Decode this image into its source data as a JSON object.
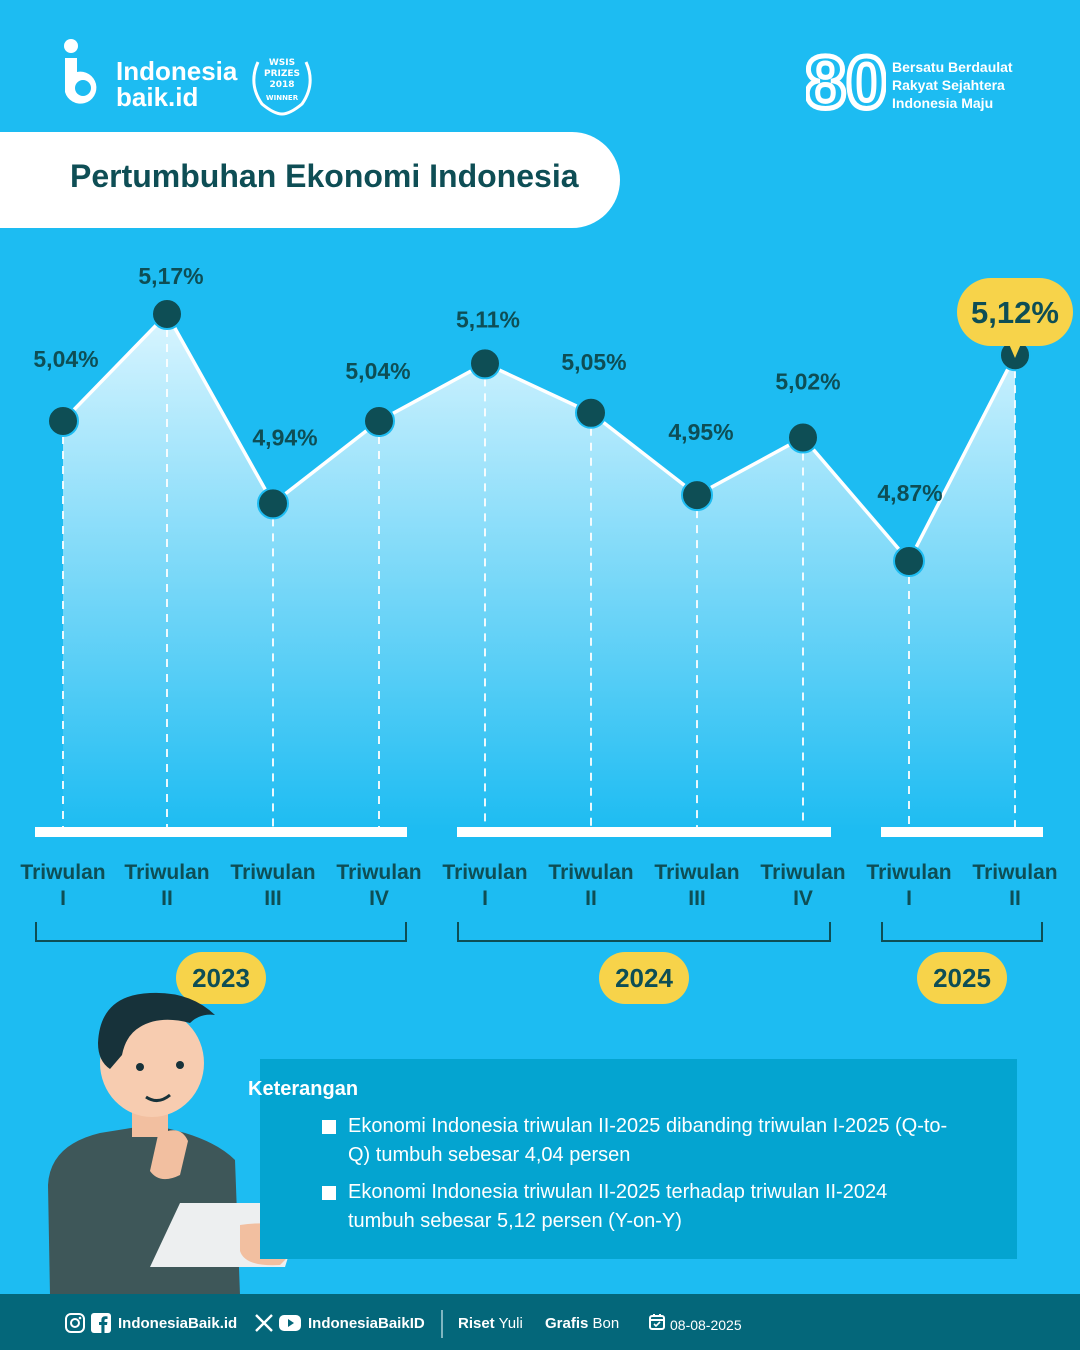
{
  "brand": {
    "logo_line1": "Indonesia",
    "logo_line2": "baik.id",
    "award_line1": "WSIS",
    "award_line2": "PRIZES",
    "award_line3": "2018",
    "award_line4": "WINNER",
    "anniversary_number": "80",
    "tagline_line1": "Bersatu Berdaulat",
    "tagline_line2": "Rakyat Sejahtera",
    "tagline_line3": "Indonesia Maju"
  },
  "title": "Pertumbuhan Ekonomi Indonesia",
  "colors": {
    "background": "#1DBCF2",
    "line": "#FFFFFF",
    "point": "#0E4E55",
    "label": "#0E4E55",
    "highlight": "#F7D34A",
    "area_top": "#D9F5FF"
  },
  "chart_data": {
    "type": "line",
    "x": [
      "Triwulan I",
      "Triwulan II",
      "Triwulan III",
      "Triwulan IV",
      "Triwulan I",
      "Triwulan II",
      "Triwulan III",
      "Triwulan IV",
      "Triwulan I",
      "Triwulan II"
    ],
    "x_line1": [
      "Triwulan",
      "Triwulan",
      "Triwulan",
      "Triwulan",
      "Triwulan",
      "Triwulan",
      "Triwulan",
      "Triwulan",
      "Triwulan",
      "Triwulan"
    ],
    "x_line2": [
      "I",
      "II",
      "III",
      "IV",
      "I",
      "II",
      "III",
      "IV",
      "I",
      "II"
    ],
    "groups": [
      {
        "label": "2023",
        "count": 4
      },
      {
        "label": "2024",
        "count": 4
      },
      {
        "label": "2025",
        "count": 2
      }
    ],
    "values": [
      5.04,
      5.17,
      4.94,
      5.04,
      5.11,
      5.05,
      4.95,
      5.02,
      4.87,
      5.12
    ],
    "labels": [
      "5,04%",
      "5,17%",
      "4,94%",
      "5,04%",
      "5,11%",
      "5,05%",
      "4,95%",
      "5,02%",
      "4,87%",
      "5,12%"
    ],
    "highlight_index": 9,
    "grid": false,
    "legend": "none"
  },
  "notes": {
    "title": "Keterangan",
    "items": [
      "Ekonomi Indonesia triwulan II-2025 dibanding triwulan I-2025 (Q-to-Q) tumbuh sebesar 4,04 persen",
      "Ekonomi Indonesia triwulan II-2025 terhadap triwulan II-2024 tumbuh sebesar 5,12 persen (Y-on-Y)"
    ]
  },
  "footer": {
    "handle_1": "IndonesiaBaik.id",
    "handle_2": "IndonesiaBaikID",
    "riset_label": "Riset",
    "riset_name": "Yuli",
    "grafis_label": "Grafis",
    "grafis_name": "Bon",
    "date": "08-08-2025"
  }
}
